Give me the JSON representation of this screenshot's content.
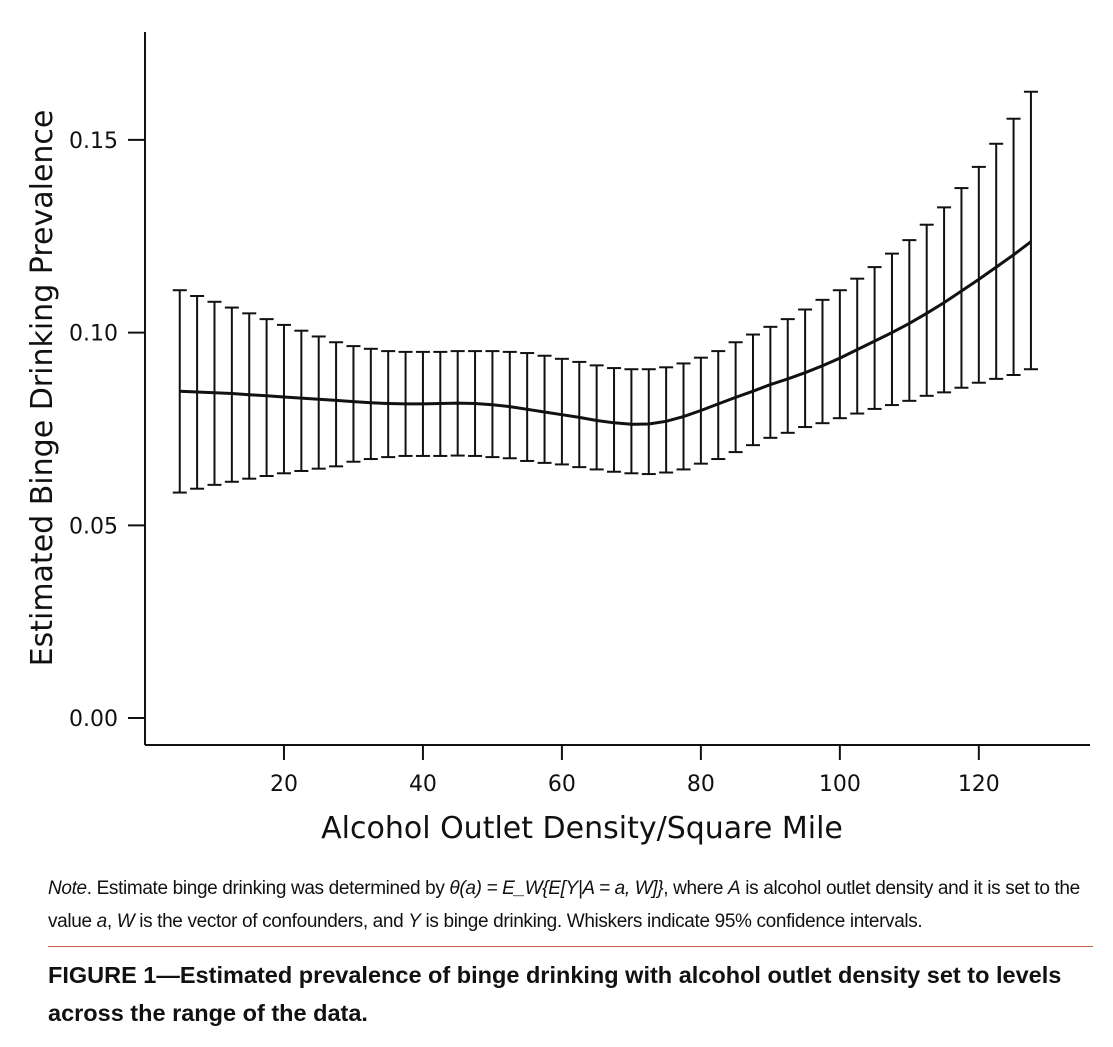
{
  "chart_data": {
    "type": "line",
    "title": "",
    "xlabel": "Alcohol Outlet Density/Square Mile",
    "ylabel": "Estimated Binge Drinking Prevalence",
    "xlim": [
      0,
      136
    ],
    "ylim": [
      -0.007,
      0.178
    ],
    "x_ticks": [
      20,
      40,
      60,
      80,
      100,
      120
    ],
    "x_tick_labels": [
      "20",
      "40",
      "60",
      "80",
      "100",
      "120"
    ],
    "y_ticks": [
      0.0,
      0.05,
      0.1,
      0.15
    ],
    "y_tick_labels": [
      "0.00",
      "0.05",
      "0.10",
      "0.15"
    ],
    "grid": false,
    "error_bars": "95% confidence intervals",
    "x": [
      5,
      7.5,
      10,
      12.5,
      15,
      17.5,
      20,
      22.5,
      25,
      27.5,
      30,
      32.5,
      35,
      37.5,
      40,
      42.5,
      45,
      47.5,
      50,
      52.5,
      55,
      57.5,
      60,
      62.5,
      65,
      67.5,
      70,
      72.5,
      75,
      77.5,
      80,
      82.5,
      85,
      87.5,
      90,
      92.5,
      95,
      97.5,
      100,
      102.5,
      105,
      107.5,
      110,
      112.5,
      115,
      117.5,
      120,
      122.5,
      125,
      127.5
    ],
    "series": [
      {
        "values": [
          0.0848,
          0.0846,
          0.0844,
          0.0842,
          0.0839,
          0.0836,
          0.0833,
          0.083,
          0.0827,
          0.0824,
          0.0821,
          0.0818,
          0.0816,
          0.0815,
          0.0815,
          0.0816,
          0.0817,
          0.0816,
          0.0813,
          0.0808,
          0.0801,
          0.0794,
          0.0787,
          0.078,
          0.0772,
          0.0766,
          0.0762,
          0.0763,
          0.077,
          0.0782,
          0.0798,
          0.0815,
          0.0832,
          0.0848,
          0.0865,
          0.088,
          0.0896,
          0.0914,
          0.0934,
          0.0956,
          0.0978,
          0.1,
          0.1024,
          0.105,
          0.1078,
          0.1108,
          0.1138,
          0.117,
          0.1202,
          0.1236
        ],
        "lower": [
          0.0585,
          0.0595,
          0.0605,
          0.0613,
          0.0621,
          0.0628,
          0.0635,
          0.0641,
          0.0647,
          0.0653,
          0.0665,
          0.0672,
          0.0677,
          0.068,
          0.068,
          0.068,
          0.0681,
          0.068,
          0.0677,
          0.0674,
          0.0667,
          0.0662,
          0.0658,
          0.0651,
          0.0645,
          0.0639,
          0.0635,
          0.0633,
          0.0637,
          0.0645,
          0.066,
          0.0672,
          0.069,
          0.0708,
          0.0727,
          0.074,
          0.0755,
          0.0765,
          0.0778,
          0.079,
          0.0802,
          0.0812,
          0.0823,
          0.0836,
          0.0845,
          0.0857,
          0.087,
          0.088,
          0.089,
          0.0905
        ],
        "upper": [
          0.111,
          0.1095,
          0.108,
          0.1065,
          0.105,
          0.1035,
          0.102,
          0.1005,
          0.099,
          0.0975,
          0.0965,
          0.0958,
          0.0952,
          0.095,
          0.095,
          0.095,
          0.0952,
          0.0952,
          0.0952,
          0.095,
          0.0947,
          0.094,
          0.0932,
          0.0924,
          0.0915,
          0.0908,
          0.0905,
          0.0905,
          0.091,
          0.092,
          0.0935,
          0.0952,
          0.0975,
          0.0995,
          0.1015,
          0.1035,
          0.106,
          0.1085,
          0.111,
          0.114,
          0.117,
          0.1205,
          0.124,
          0.128,
          0.1325,
          0.1375,
          0.143,
          0.149,
          0.1555,
          0.1625
        ]
      }
    ]
  },
  "note": {
    "lead": "Note",
    "p1": ". Estimate binge drinking was determined by ",
    "formula": "θ(a) = E_W{E[Y|A = a, W]}",
    "p2": ", where ",
    "var_a_cap": "A",
    "p3": " is alcohol outlet density and it is set to the value ",
    "var_a": "a",
    "p4": ", ",
    "var_w": "W",
    "p5": " is the vector of confounders, and ",
    "var_y": "Y",
    "p6": " is binge drinking. Whiskers indicate 95% confidence intervals."
  },
  "caption": "FIGURE 1—Estimated prevalence of binge drinking with alcohol outlet density set to levels across the range of the data."
}
